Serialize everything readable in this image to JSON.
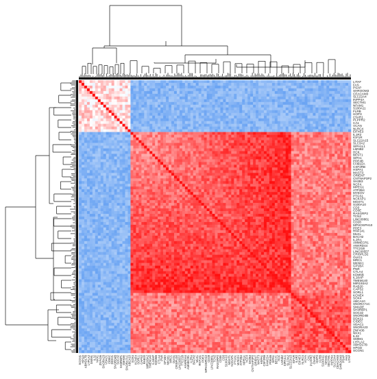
{
  "chart_data": {
    "type": "heatmap",
    "title": "",
    "xlabel": "",
    "ylabel": "",
    "colorscale": {
      "low": "#4a90f0",
      "mid": "#ffffff",
      "high": "#ff1010"
    },
    "clusters": [
      {
        "name": "cluster-blue-left",
        "size_fraction": 0.185
      },
      {
        "name": "cluster-red-main",
        "size_fraction": 0.6
      },
      {
        "name": "cluster-bottom-left",
        "size_fraction": 0.215
      }
    ],
    "row_labels": [
      "LITAF",
      "FAS",
      "PSAP",
      "SHROOM3",
      "CEACAM3",
      "SLC22A4",
      "INPP4A",
      "SECTM1",
      "NFAM1",
      "S100A11",
      "FLRB",
      "HOPX",
      "C5AR1",
      "PLPPR2",
      "CA1",
      "VCAN",
      "NLRC4",
      "EIF4E3",
      "IL1R2",
      "IGF1R",
      "SLC22A15",
      "SLC3A2",
      "SIPA1L1",
      "LMNB2",
      "HCK",
      "BEST1",
      "SIPA1",
      "PDE4B",
      "FAM22A",
      "CSF2RB",
      "HSPA1",
      "MAST3",
      "ORIENT",
      "CNTNAP3P2",
      "SH2B3",
      "NCF4",
      "MPEG1",
      "ATP2B4",
      "MYEOV",
      "PTGS1",
      "NCKAP1",
      "MGST1",
      "S100A10",
      "CD3",
      "CD3E",
      "RASGRP2",
      "TCN2",
      "LINC00861",
      "CD28",
      "MPHOSPH10",
      "PDE3",
      "RNF141",
      "MLKL",
      "BACH2",
      "IL2RA",
      "AMMECR1",
      "ANKRD44",
      "TTC21B",
      "LINC00557",
      "CRISPLD2",
      "OLIG1",
      "MRC1",
      "MKNK1",
      "GP1BA",
      "PNR",
      "CTLA4",
      "KDM6B",
      "IL18AP",
      "TMEM140",
      "MIR193A2",
      "RAB20",
      "CAPS2",
      "SORL1",
      "KCNE4",
      "SOX4",
      "ABCA10",
      "SNORA71C",
      "SMADE",
      "SH3RBP1",
      "SOC32",
      "SNORD4B",
      "DDX21",
      "CIDEC",
      "VDAC1",
      "SNORA23",
      "ZNF436",
      "NKX1",
      "IL32",
      "SMIM1",
      "LYPLA2",
      "ABHD17B",
      "HPGD",
      "SCGN1"
    ],
    "col_labels": [
      "SCGN1",
      "HPGD",
      "ABHD17B",
      "LYPLA2",
      "SMIM1",
      "IL32",
      "NKX1",
      "ZNF436",
      "SNORA23",
      "VDAC1",
      "CIDEC",
      "DDX21",
      "SNORD4B",
      "SOC32",
      "SH3RBP1",
      "SMADE",
      "SNORA71C",
      "ABCA10",
      "SOX4",
      "KCNE4",
      "SORL1",
      "CAPS2",
      "RAB20",
      "MIR193A2",
      "TMEM140",
      "IL18AP",
      "KDM6B",
      "CTLA4",
      "PNR",
      "GP1BA",
      "MKNK1",
      "MRC1",
      "OLIG1",
      "CRISPLD2",
      "LINC00557",
      "TTC21B",
      "ANKRD44",
      "AMMECR1",
      "IL2RA",
      "BACH2",
      "MLKL",
      "RNF141",
      "PDE3",
      "MPHOSPH10",
      "CD28",
      "LINC00861",
      "TCN2",
      "RASGRP2",
      "CD3E",
      "CD3",
      "S100A10",
      "MGST1",
      "NCKAP1",
      "PTGS1",
      "MYEOV",
      "ATP2B4",
      "MPEG1",
      "NCF4",
      "SH2B3",
      "CNTNAP3P2",
      "ORIENT",
      "MAST3",
      "HSPA1",
      "CSF2RB",
      "FAM22A",
      "PDE4B",
      "SIPA1",
      "BEST1",
      "HCK",
      "LMNB2",
      "SIPA1L1",
      "SLC3A2",
      "SLC22A15",
      "IGF1R",
      "IL1R2",
      "EIF4E3",
      "NLRC4",
      "VCAN",
      "CA1",
      "PLPPR2",
      "C5AR1",
      "HOPX",
      "FLRB",
      "S100A11",
      "NFAM1",
      "SECTM1",
      "INPP4A",
      "SLC22A4",
      "CEACAM3",
      "SHROOM3",
      "PSAP",
      "FAS",
      "LITAF"
    ]
  }
}
